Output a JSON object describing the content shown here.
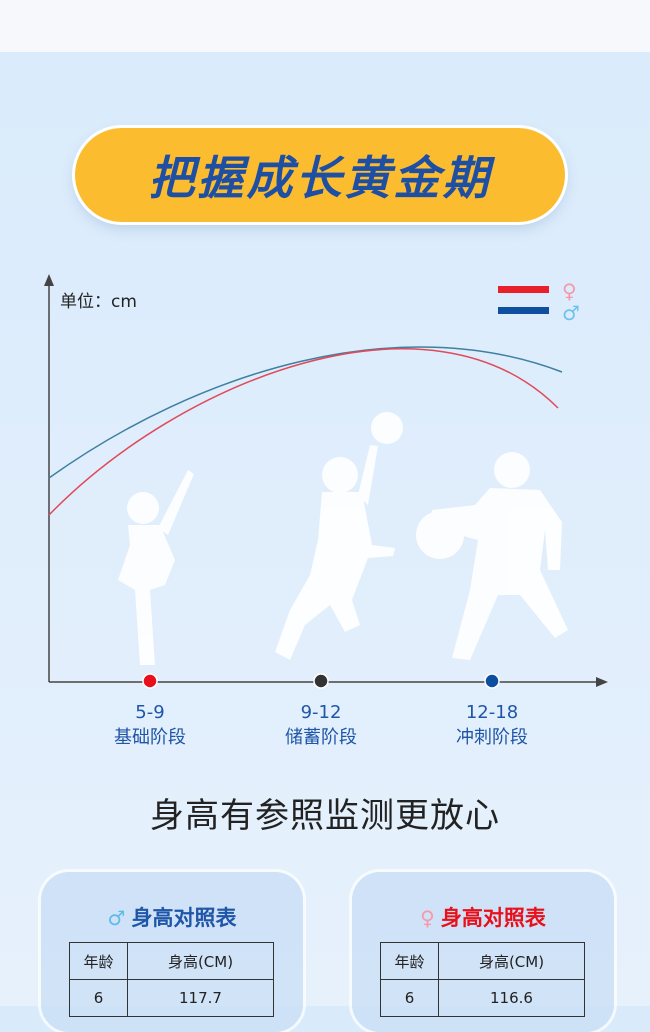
{
  "title": "把握成长黄金期",
  "chart": {
    "unit_label": "单位：cm",
    "legend": [
      {
        "symbol": "♀",
        "line_color": "#e8202a",
        "symbol_color": "#f49aa8"
      },
      {
        "symbol": "♂",
        "line_color": "#0f4fa0",
        "symbol_color": "#6cc3ee"
      }
    ],
    "curve_colors": {
      "male": "#3f7fa0",
      "female": "#e04a5a"
    },
    "stages": [
      {
        "age": "5-9",
        "name": "基础阶段",
        "dot_color": "#e8101a"
      },
      {
        "age": "9-12",
        "name": "储蓄阶段",
        "dot_color": "#333333"
      },
      {
        "age": "12-18",
        "name": "冲刺阶段",
        "dot_color": "#0c4ea0"
      }
    ]
  },
  "heading": "身高有参照监测更放心",
  "tables": [
    {
      "symbol": "♂",
      "title": "身高对照表",
      "color": "#1f56a8",
      "symbol_color": "#5cbbe8",
      "headers": [
        "年龄",
        "身高(CM)"
      ],
      "rows": [
        [
          "6",
          "117.7"
        ]
      ]
    },
    {
      "symbol": "♀",
      "title": "身高对照表",
      "color": "#e8101a",
      "symbol_color": "#f49aa8",
      "headers": [
        "年龄",
        "身高(CM)"
      ],
      "rows": [
        [
          "6",
          "116.6"
        ]
      ]
    }
  ]
}
